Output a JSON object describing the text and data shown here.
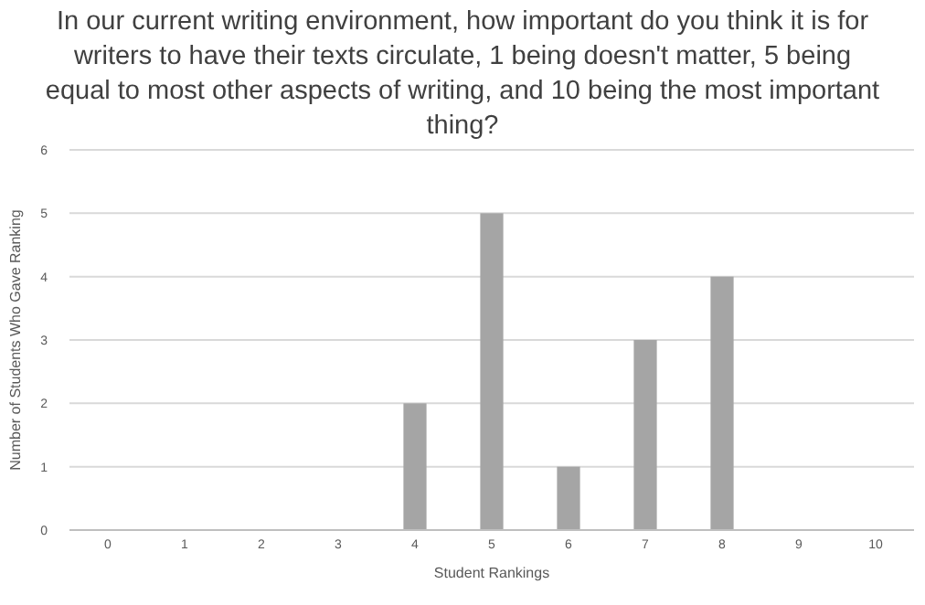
{
  "chart_data": {
    "type": "bar",
    "title": "In our current writing environment, how important do you think it is for writers to have their texts circulate, 1 being doesn't matter, 5 being equal to most other aspects of writing, and 10 being the most important thing?",
    "xlabel": "Student Rankings",
    "ylabel": "Number of Students Who Gave Ranking",
    "categories": [
      "0",
      "1",
      "2",
      "3",
      "4",
      "5",
      "6",
      "7",
      "8",
      "9",
      "10"
    ],
    "values": [
      0,
      0,
      0,
      0,
      2,
      5,
      1,
      3,
      4,
      0,
      0
    ],
    "color": "#a5a5a5",
    "ylim": [
      0,
      6
    ],
    "yticks": [
      0,
      1,
      2,
      3,
      4,
      5,
      6
    ],
    "grid": true
  }
}
